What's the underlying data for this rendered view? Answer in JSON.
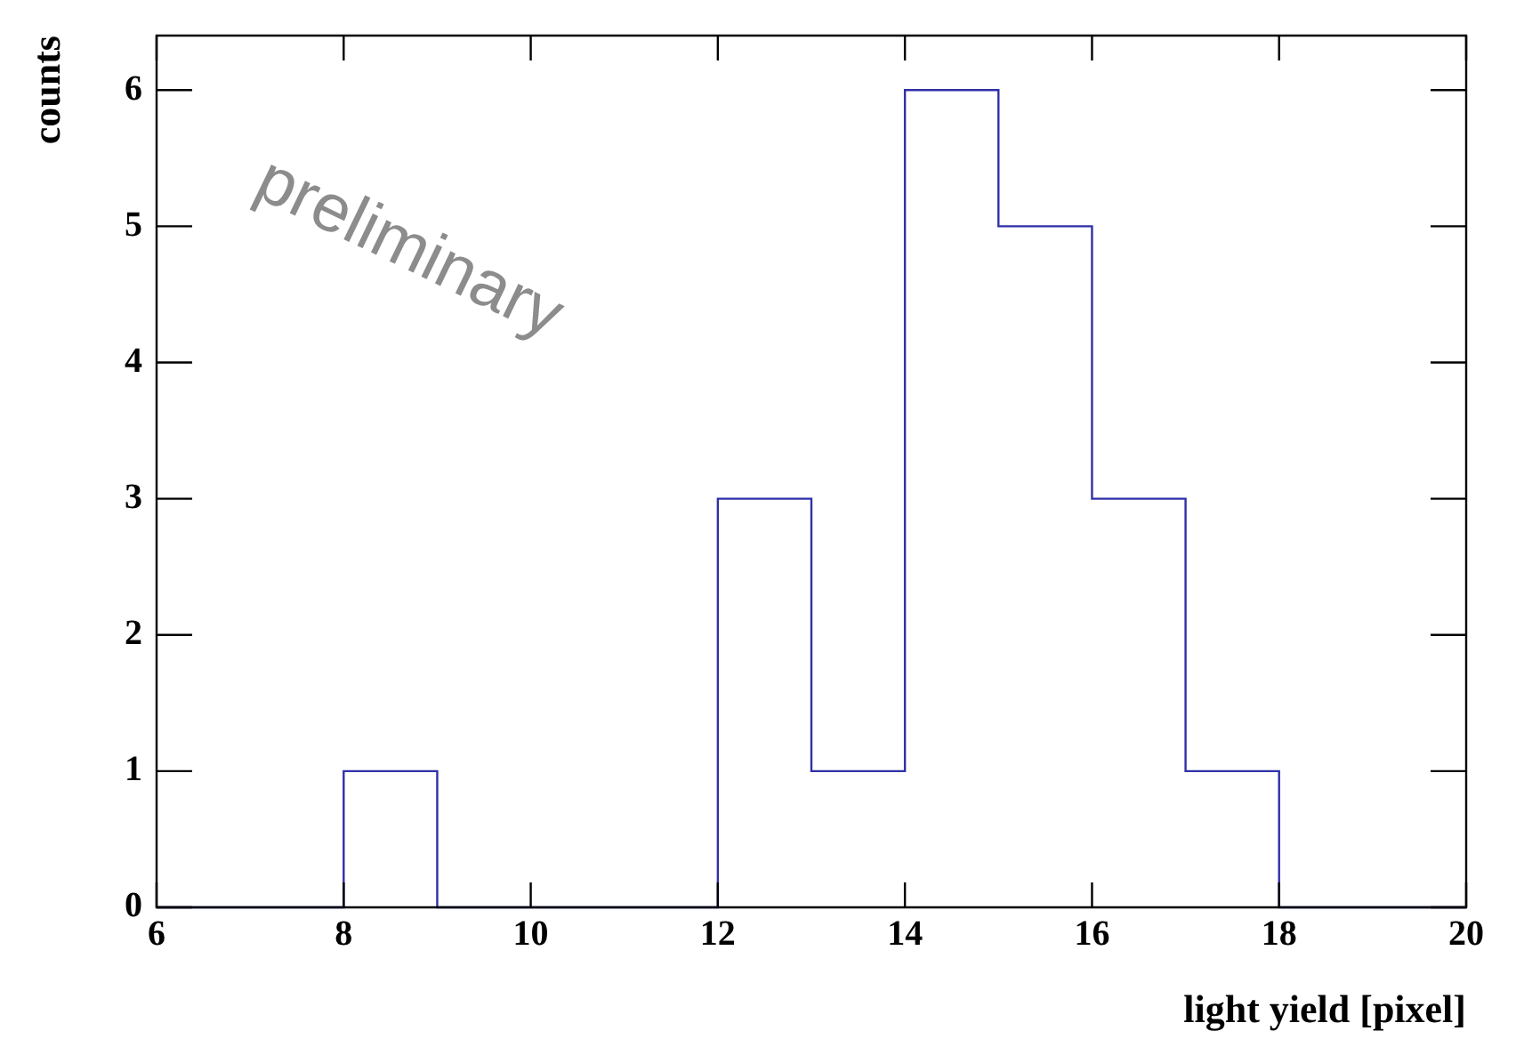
{
  "chart_data": {
    "type": "histogram",
    "xlabel": "light yield [pixel]",
    "ylabel": "counts",
    "annotations": [
      "preliminary"
    ],
    "bins": [
      6,
      7,
      8,
      9,
      10,
      11,
      12,
      13,
      14,
      15,
      16,
      17,
      18,
      19,
      20
    ],
    "values": [
      0,
      0,
      1,
      0,
      0,
      0,
      3,
      1,
      6,
      5,
      3,
      1,
      0,
      0
    ],
    "color": "#3030a8",
    "xlim": [
      6,
      20
    ],
    "xticks": [
      6,
      8,
      10,
      12,
      14,
      16,
      18,
      20
    ],
    "ylim": [
      0,
      6.4
    ],
    "yticks": [
      0,
      1,
      2,
      3,
      4,
      5,
      6
    ],
    "grid": false,
    "legend": false
  }
}
